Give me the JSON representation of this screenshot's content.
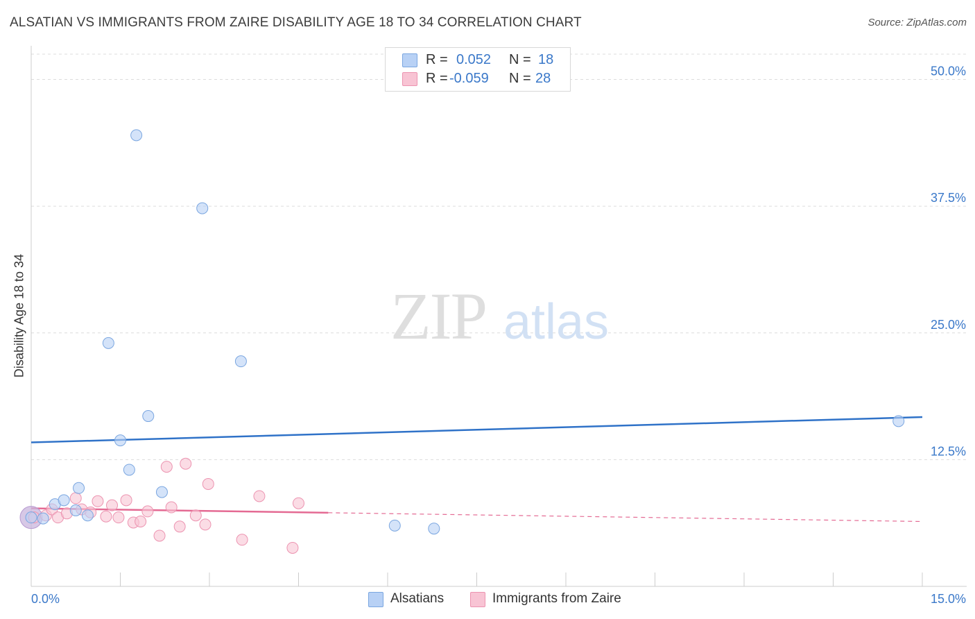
{
  "header": {
    "title": "ALSATIAN VS IMMIGRANTS FROM ZAIRE DISABILITY AGE 18 TO 34 CORRELATION CHART",
    "source": "Source: ZipAtlas.com"
  },
  "watermark": {
    "zip": "ZIP",
    "atlas": "atlas"
  },
  "legend": {
    "rows": [
      {
        "r_label": "R =",
        "r_value": "0.052",
        "n_label": "N =",
        "n_value": "18"
      },
      {
        "r_label": "R =",
        "r_value": "-0.059",
        "n_label": "N =",
        "n_value": "28"
      }
    ]
  },
  "colors": {
    "blue_fill": "#b8d1f5",
    "blue_stroke": "#7aa6e0",
    "blue_line": "#2f72c8",
    "pink_fill": "#f8c4d4",
    "pink_stroke": "#ec93b0",
    "pink_line": "#e46a93",
    "text_blue": "#3a78c9",
    "grid": "#dcdcdc"
  },
  "chart_data": {
    "type": "scatter",
    "title": "ALSATIAN VS IMMIGRANTS FROM ZAIRE DISABILITY AGE 18 TO 34 CORRELATION CHART",
    "xlabel": "",
    "ylabel": "Disability Age 18 to 34",
    "xlim": [
      0,
      15
    ],
    "ylim": [
      0,
      52.5
    ],
    "x_tick_labels": [
      "0.0%",
      "15.0%"
    ],
    "y_ticks": [
      12.5,
      25.0,
      37.5,
      50.0
    ],
    "y_tick_labels": [
      "12.5%",
      "25.0%",
      "37.5%",
      "50.0%"
    ],
    "grid": true,
    "legend_position": "bottom",
    "series": [
      {
        "name": "Alsatians",
        "r": 0.052,
        "n": 18,
        "points": [
          {
            "x": 0.0,
            "y": 6.8
          },
          {
            "x": 0.2,
            "y": 6.7
          },
          {
            "x": 0.4,
            "y": 8.1
          },
          {
            "x": 0.55,
            "y": 8.5
          },
          {
            "x": 0.75,
            "y": 7.5
          },
          {
            "x": 0.8,
            "y": 9.7
          },
          {
            "x": 0.95,
            "y": 7.0
          },
          {
            "x": 1.3,
            "y": 24.0
          },
          {
            "x": 1.5,
            "y": 14.4
          },
          {
            "x": 1.65,
            "y": 11.5
          },
          {
            "x": 1.77,
            "y": 44.5
          },
          {
            "x": 1.97,
            "y": 16.8
          },
          {
            "x": 2.2,
            "y": 9.3
          },
          {
            "x": 2.88,
            "y": 37.3
          },
          {
            "x": 3.53,
            "y": 22.2
          },
          {
            "x": 6.12,
            "y": 6.0
          },
          {
            "x": 6.78,
            "y": 5.7
          },
          {
            "x": 14.6,
            "y": 16.3
          }
        ],
        "trend": {
          "x": [
            0,
            15
          ],
          "y": [
            14.2,
            16.7
          ],
          "style": "solid"
        }
      },
      {
        "name": "Immigrants from Zaire",
        "r": -0.059,
        "n": 28,
        "points": [
          {
            "x": 0.05,
            "y": 6.8
          },
          {
            "x": 0.25,
            "y": 7.0
          },
          {
            "x": 0.35,
            "y": 7.6
          },
          {
            "x": 0.45,
            "y": 6.8
          },
          {
            "x": 0.6,
            "y": 7.2
          },
          {
            "x": 0.75,
            "y": 8.7
          },
          {
            "x": 0.85,
            "y": 7.6
          },
          {
            "x": 1.0,
            "y": 7.3
          },
          {
            "x": 1.12,
            "y": 8.4
          },
          {
            "x": 1.26,
            "y": 6.9
          },
          {
            "x": 1.36,
            "y": 8.0
          },
          {
            "x": 1.47,
            "y": 6.8
          },
          {
            "x": 1.6,
            "y": 8.5
          },
          {
            "x": 1.72,
            "y": 6.3
          },
          {
            "x": 1.84,
            "y": 6.4
          },
          {
            "x": 1.96,
            "y": 7.4
          },
          {
            "x": 2.16,
            "y": 5.0
          },
          {
            "x": 2.28,
            "y": 11.8
          },
          {
            "x": 2.36,
            "y": 7.8
          },
          {
            "x": 2.5,
            "y": 5.9
          },
          {
            "x": 2.6,
            "y": 12.1
          },
          {
            "x": 2.77,
            "y": 7.0
          },
          {
            "x": 2.93,
            "y": 6.1
          },
          {
            "x": 2.98,
            "y": 10.1
          },
          {
            "x": 3.55,
            "y": 4.6
          },
          {
            "x": 3.84,
            "y": 8.9
          },
          {
            "x": 4.4,
            "y": 3.8
          },
          {
            "x": 4.5,
            "y": 8.2
          }
        ],
        "trend": {
          "x": [
            0,
            15
          ],
          "y": [
            7.7,
            6.4
          ],
          "solid_until_x": 5.0,
          "style": "solid-then-dashed"
        }
      }
    ]
  }
}
